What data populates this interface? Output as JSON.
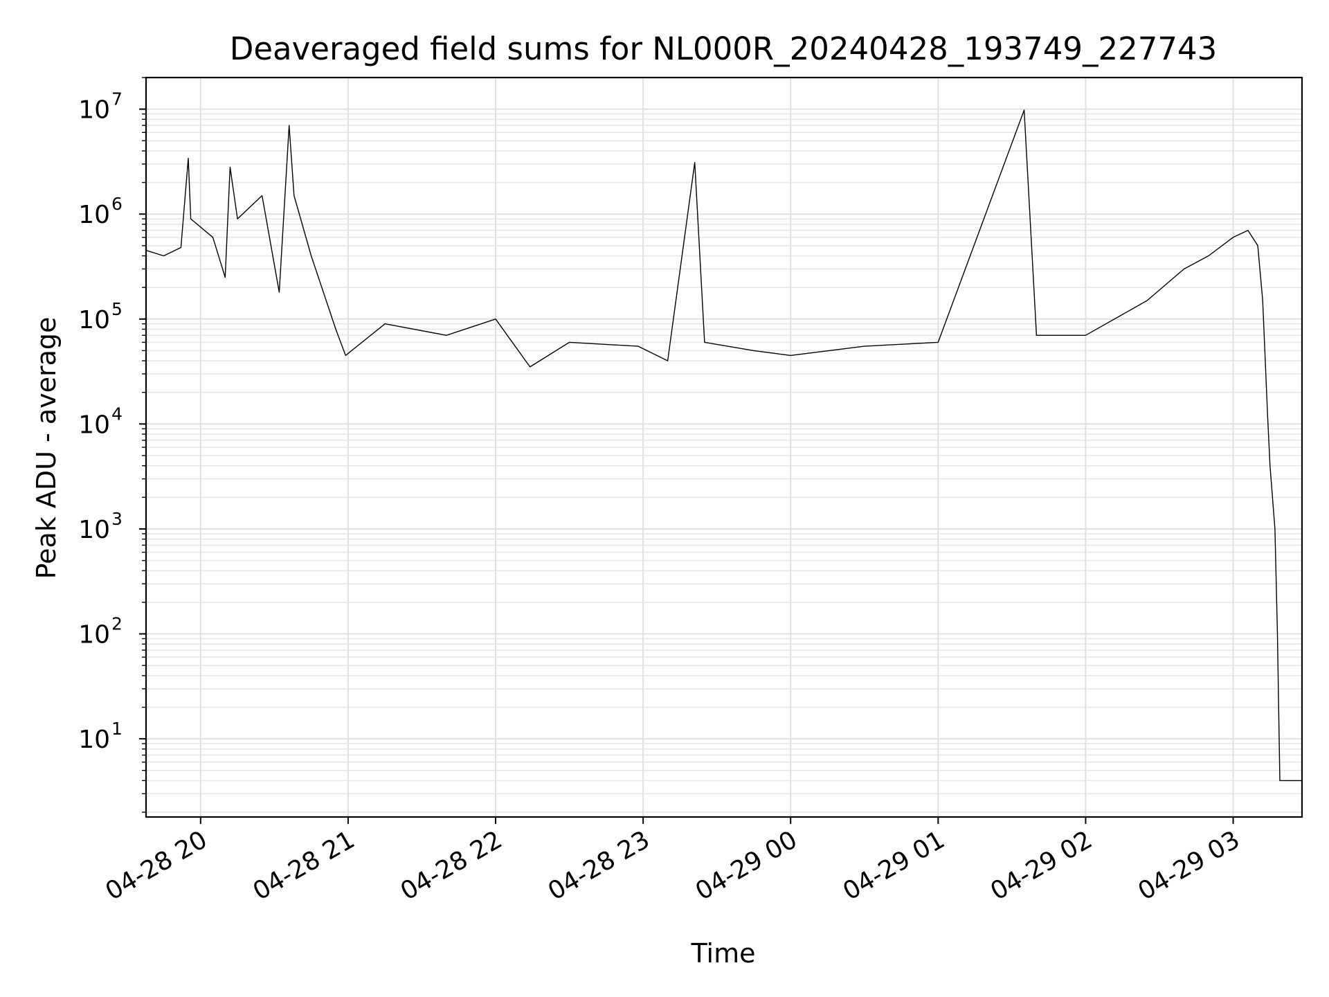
{
  "chart_data": {
    "type": "line",
    "title": "Deaveraged field sums for NL000R_20240428_193749_227743",
    "xlabel": "Time",
    "ylabel": "Peak ADU - average",
    "yscale": "log",
    "ylim": [
      1.8,
      20000000
    ],
    "xlim": [
      "2024-04-28 19:37:49",
      "2024-04-29 03:28:00"
    ],
    "grid": true,
    "color": "#000000",
    "x_ticks": [
      {
        "label": "04-28 20",
        "t": "2024-04-28 20:00"
      },
      {
        "label": "04-28 21",
        "t": "2024-04-28 21:00"
      },
      {
        "label": "04-28 22",
        "t": "2024-04-28 22:00"
      },
      {
        "label": "04-28 23",
        "t": "2024-04-28 23:00"
      },
      {
        "label": "04-29 00",
        "t": "2024-04-29 00:00"
      },
      {
        "label": "04-29 01",
        "t": "2024-04-29 01:00"
      },
      {
        "label": "04-29 02",
        "t": "2024-04-29 02:00"
      },
      {
        "label": "04-29 03",
        "t": "2024-04-29 03:00"
      }
    ],
    "y_ticks": [
      {
        "base": "10",
        "exp": "1",
        "value": 10
      },
      {
        "base": "10",
        "exp": "2",
        "value": 100
      },
      {
        "base": "10",
        "exp": "3",
        "value": 1000
      },
      {
        "base": "10",
        "exp": "4",
        "value": 10000
      },
      {
        "base": "10",
        "exp": "5",
        "value": 100000
      },
      {
        "base": "10",
        "exp": "6",
        "value": 1000000
      },
      {
        "base": "10",
        "exp": "7",
        "value": 10000000
      }
    ],
    "series": [
      {
        "points": [
          [
            "2024-04-28 19:38",
            450000
          ],
          [
            "2024-04-28 19:45",
            400000
          ],
          [
            "2024-04-28 19:52",
            480000
          ],
          [
            "2024-04-28 19:55",
            3400000
          ],
          [
            "2024-04-28 19:56",
            900000
          ],
          [
            "2024-04-28 20:05",
            600000
          ],
          [
            "2024-04-28 20:10",
            250000
          ],
          [
            "2024-04-28 20:12",
            2800000
          ],
          [
            "2024-04-28 20:15",
            900000
          ],
          [
            "2024-04-28 20:25",
            1500000
          ],
          [
            "2024-04-28 20:32",
            180000
          ],
          [
            "2024-04-28 20:36",
            7000000
          ],
          [
            "2024-04-28 20:38",
            1500000
          ],
          [
            "2024-04-28 20:45",
            400000
          ],
          [
            "2024-04-28 20:55",
            80000
          ],
          [
            "2024-04-28 20:59",
            45000
          ],
          [
            "2024-04-28 21:15",
            90000
          ],
          [
            "2024-04-28 21:40",
            70000
          ],
          [
            "2024-04-28 22:00",
            100000
          ],
          [
            "2024-04-28 22:14",
            35000
          ],
          [
            "2024-04-28 22:30",
            60000
          ],
          [
            "2024-04-28 22:58",
            55000
          ],
          [
            "2024-04-28 23:10",
            40000
          ],
          [
            "2024-04-28 23:21",
            3100000
          ],
          [
            "2024-04-28 23:25",
            60000
          ],
          [
            "2024-04-28 23:45",
            50000
          ],
          [
            "2024-04-29 00:00",
            45000
          ],
          [
            "2024-04-29 00:30",
            55000
          ],
          [
            "2024-04-29 01:00",
            60000
          ],
          [
            "2024-04-29 01:35",
            9800000
          ],
          [
            "2024-04-29 01:40",
            70000
          ],
          [
            "2024-04-29 02:00",
            70000
          ],
          [
            "2024-04-29 02:25",
            150000
          ],
          [
            "2024-04-29 02:40",
            300000
          ],
          [
            "2024-04-29 02:50",
            400000
          ],
          [
            "2024-04-29 03:00",
            600000
          ],
          [
            "2024-04-29 03:06",
            700000
          ],
          [
            "2024-04-29 03:10",
            500000
          ],
          [
            "2024-04-29 03:12",
            150000
          ],
          [
            "2024-04-29 03:14",
            12000
          ],
          [
            "2024-04-29 03:15",
            4000
          ],
          [
            "2024-04-29 03:17",
            1000
          ],
          [
            "2024-04-29 03:18",
            100
          ],
          [
            "2024-04-29 03:19",
            4
          ],
          [
            "2024-04-29 03:28",
            4
          ]
        ]
      }
    ]
  }
}
